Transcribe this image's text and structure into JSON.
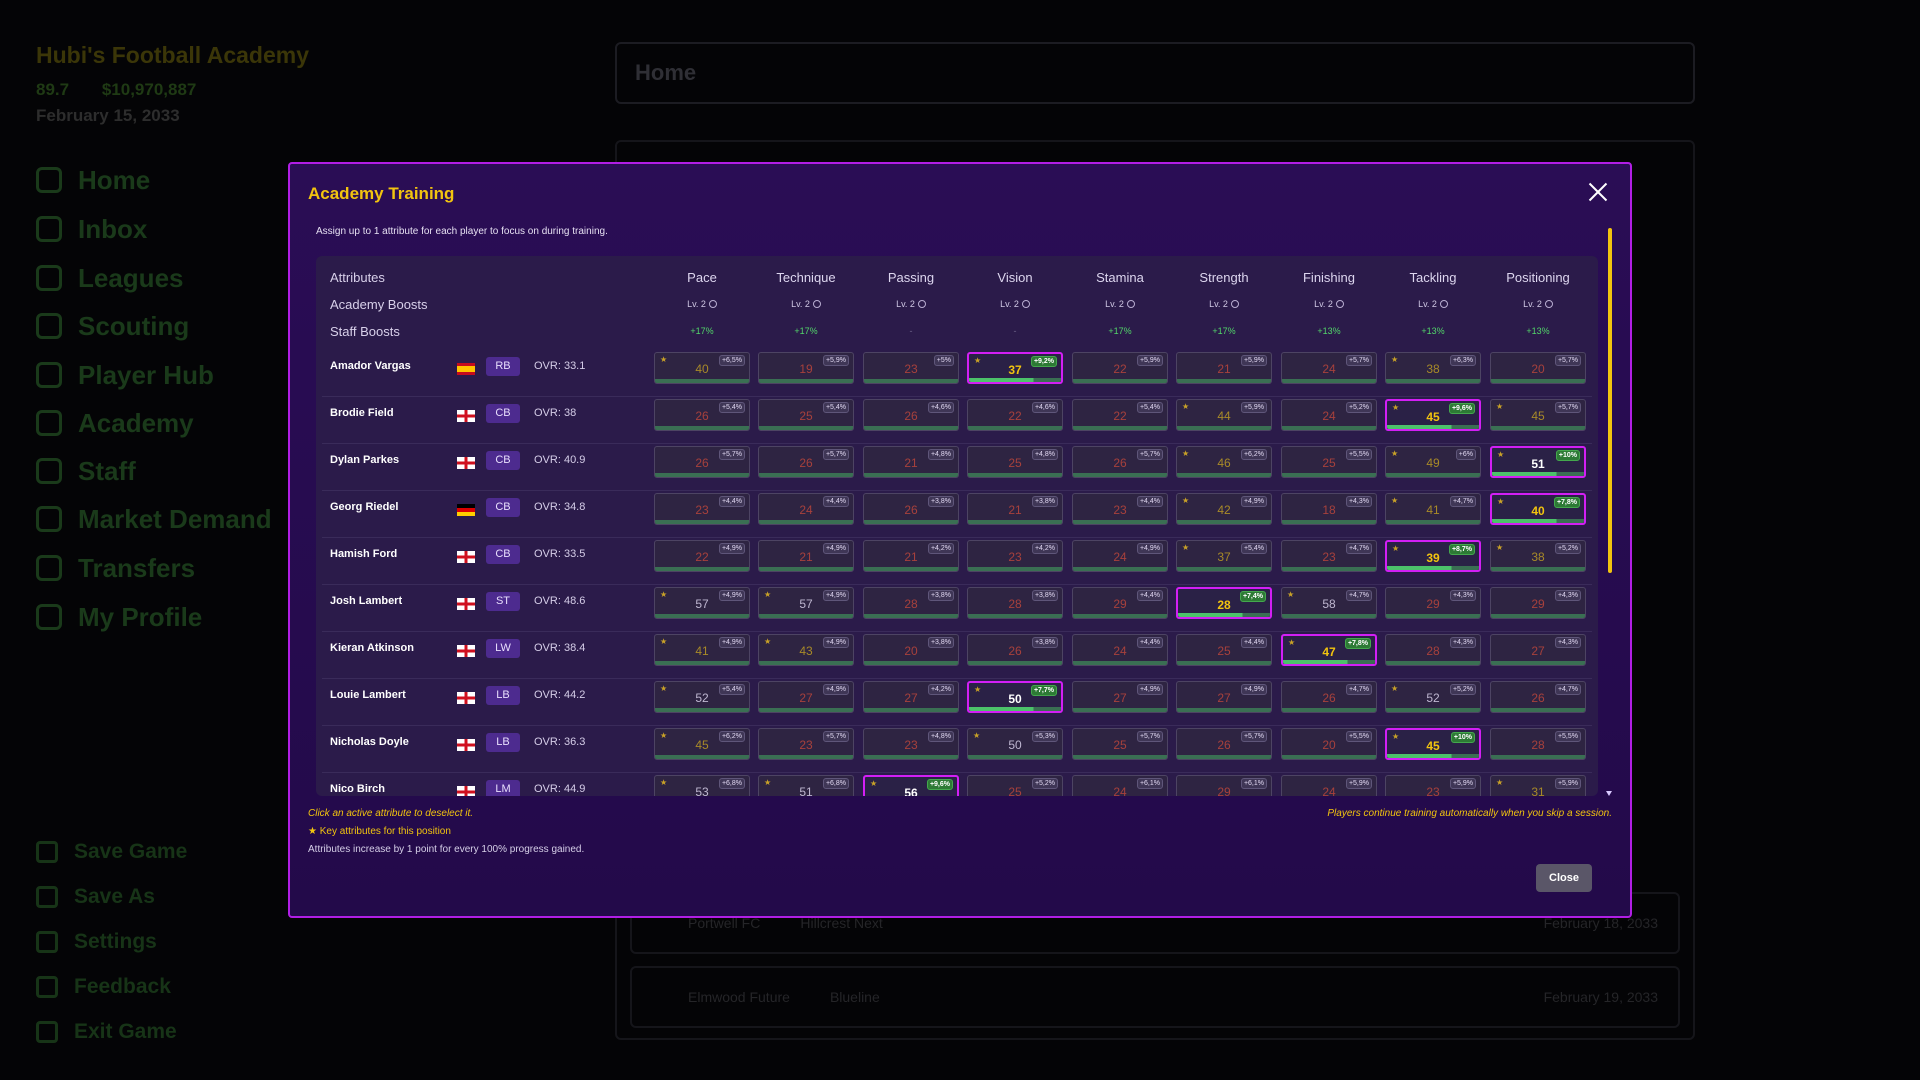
{
  "background": {
    "club_name": "Hubi's Football Academy",
    "rating": "89.7",
    "money": "$10,970,887",
    "date": "February 15, 2033",
    "nav": [
      "Home",
      "Inbox",
      "Leagues",
      "Scouting",
      "Player Hub",
      "Academy",
      "Staff",
      "Market Demand",
      "Transfers",
      "My Profile"
    ],
    "bottom_nav": [
      "Save Game",
      "Save As",
      "Settings",
      "Feedback",
      "Exit Game"
    ],
    "header_title": "Home",
    "matches": [
      {
        "home": "Portwell FC",
        "away": "Hillcrest Next",
        "date": "February 18, 2033"
      },
      {
        "home": "Elmwood Future",
        "away": "Blueline",
        "date": "February 19, 2033"
      }
    ]
  },
  "modal": {
    "title": "Academy Training",
    "subtitle": "Assign up to 1 attribute for each player to focus on during training.",
    "labels": {
      "attributes": "Attributes",
      "academy_boosts": "Academy Boosts",
      "staff_boosts": "Staff Boosts"
    },
    "attributes": [
      {
        "name": "Pace",
        "level": "Lv. 2",
        "staff": "+17%"
      },
      {
        "name": "Technique",
        "level": "Lv. 2",
        "staff": "+17%"
      },
      {
        "name": "Passing",
        "level": "Lv. 2",
        "staff": "-"
      },
      {
        "name": "Vision",
        "level": "Lv. 2",
        "staff": "-"
      },
      {
        "name": "Stamina",
        "level": "Lv. 2",
        "staff": "+17%"
      },
      {
        "name": "Strength",
        "level": "Lv. 2",
        "staff": "+17%"
      },
      {
        "name": "Finishing",
        "level": "Lv. 2",
        "staff": "+13%"
      },
      {
        "name": "Tackling",
        "level": "Lv. 2",
        "staff": "+13%"
      },
      {
        "name": "Positioning",
        "level": "Lv. 2",
        "staff": "+13%"
      }
    ],
    "players": [
      {
        "name": "Amador Vargas",
        "flag": "spain",
        "pos": "RB",
        "ovr": "OVR: 33.1",
        "cells": [
          {
            "v": "40",
            "b": "+6,5%",
            "k": true
          },
          {
            "v": "19",
            "b": "+5,9%"
          },
          {
            "v": "23",
            "b": "+5%"
          },
          {
            "v": "37",
            "b": "+9,2%",
            "k": true,
            "a": true
          },
          {
            "v": "22",
            "b": "+5,9%"
          },
          {
            "v": "21",
            "b": "+5,9%"
          },
          {
            "v": "24",
            "b": "+5,7%"
          },
          {
            "v": "38",
            "b": "+6,3%",
            "k": true
          },
          {
            "v": "20",
            "b": "+5,7%"
          }
        ]
      },
      {
        "name": "Brodie Field",
        "flag": "england",
        "pos": "CB",
        "ovr": "OVR: 38",
        "cells": [
          {
            "v": "26",
            "b": "+5,4%"
          },
          {
            "v": "25",
            "b": "+5,4%"
          },
          {
            "v": "26",
            "b": "+4,6%"
          },
          {
            "v": "22",
            "b": "+4,6%"
          },
          {
            "v": "22",
            "b": "+5,4%"
          },
          {
            "v": "44",
            "b": "+5,9%",
            "k": true
          },
          {
            "v": "24",
            "b": "+5,2%"
          },
          {
            "v": "45",
            "b": "+9,6%",
            "k": true,
            "a": true
          },
          {
            "v": "45",
            "b": "+5,7%",
            "k": true
          }
        ]
      },
      {
        "name": "Dylan Parkes",
        "flag": "england",
        "pos": "CB",
        "ovr": "OVR: 40.9",
        "cells": [
          {
            "v": "26",
            "b": "+5,7%"
          },
          {
            "v": "26",
            "b": "+5,7%"
          },
          {
            "v": "21",
            "b": "+4,8%"
          },
          {
            "v": "25",
            "b": "+4,8%"
          },
          {
            "v": "26",
            "b": "+5,7%"
          },
          {
            "v": "46",
            "b": "+6,2%",
            "k": true
          },
          {
            "v": "25",
            "b": "+5,5%"
          },
          {
            "v": "49",
            "b": "+6%",
            "k": true
          },
          {
            "v": "51",
            "b": "+10%",
            "k": true,
            "a": true,
            "w": true
          }
        ]
      },
      {
        "name": "Georg Riedel",
        "flag": "germany",
        "pos": "CB",
        "ovr": "OVR: 34.8",
        "cells": [
          {
            "v": "23",
            "b": "+4,4%"
          },
          {
            "v": "24",
            "b": "+4,4%"
          },
          {
            "v": "26",
            "b": "+3,8%"
          },
          {
            "v": "21",
            "b": "+3,8%"
          },
          {
            "v": "23",
            "b": "+4,4%"
          },
          {
            "v": "42",
            "b": "+4,9%",
            "k": true
          },
          {
            "v": "18",
            "b": "+4,3%"
          },
          {
            "v": "41",
            "b": "+4,7%",
            "k": true
          },
          {
            "v": "40",
            "b": "+7,8%",
            "k": true,
            "a": true
          }
        ]
      },
      {
        "name": "Hamish Ford",
        "flag": "england",
        "pos": "CB",
        "ovr": "OVR: 33.5",
        "cells": [
          {
            "v": "22",
            "b": "+4,9%"
          },
          {
            "v": "21",
            "b": "+4,9%"
          },
          {
            "v": "21",
            "b": "+4,2%"
          },
          {
            "v": "23",
            "b": "+4,2%"
          },
          {
            "v": "24",
            "b": "+4,9%"
          },
          {
            "v": "37",
            "b": "+5,4%",
            "k": true
          },
          {
            "v": "23",
            "b": "+4,7%"
          },
          {
            "v": "39",
            "b": "+8,7%",
            "k": true,
            "a": true
          },
          {
            "v": "38",
            "b": "+5,2%",
            "k": true
          }
        ]
      },
      {
        "name": "Josh Lambert",
        "flag": "england",
        "pos": "ST",
        "ovr": "OVR: 48.6",
        "cells": [
          {
            "v": "57",
            "b": "+4,9%",
            "k": true,
            "n": true
          },
          {
            "v": "57",
            "b": "+4,9%",
            "k": true,
            "n": true
          },
          {
            "v": "28",
            "b": "+3,8%"
          },
          {
            "v": "28",
            "b": "+3,8%"
          },
          {
            "v": "29",
            "b": "+4,4%"
          },
          {
            "v": "28",
            "b": "+7,4%",
            "a": true,
            "r": true
          },
          {
            "v": "58",
            "b": "+4,7%",
            "k": true,
            "n": true
          },
          {
            "v": "29",
            "b": "+4,3%"
          },
          {
            "v": "29",
            "b": "+4,3%"
          }
        ]
      },
      {
        "name": "Kieran Atkinson",
        "flag": "england",
        "pos": "LW",
        "ovr": "OVR: 38.4",
        "cells": [
          {
            "v": "41",
            "b": "+4,9%",
            "k": true
          },
          {
            "v": "43",
            "b": "+4,9%",
            "k": true
          },
          {
            "v": "20",
            "b": "+3,8%"
          },
          {
            "v": "26",
            "b": "+3,8%"
          },
          {
            "v": "24",
            "b": "+4,4%"
          },
          {
            "v": "25",
            "b": "+4,4%"
          },
          {
            "v": "47",
            "b": "+7,8%",
            "k": true,
            "a": true
          },
          {
            "v": "28",
            "b": "+4,3%"
          },
          {
            "v": "27",
            "b": "+4,3%"
          }
        ]
      },
      {
        "name": "Louie Lambert",
        "flag": "england",
        "pos": "LB",
        "ovr": "OVR: 44.2",
        "cells": [
          {
            "v": "52",
            "b": "+5,4%",
            "k": true,
            "n": true
          },
          {
            "v": "27",
            "b": "+4,9%"
          },
          {
            "v": "27",
            "b": "+4,2%"
          },
          {
            "v": "50",
            "b": "+7,7%",
            "k": true,
            "a": true,
            "w": true
          },
          {
            "v": "27",
            "b": "+4,9%"
          },
          {
            "v": "27",
            "b": "+4,9%"
          },
          {
            "v": "26",
            "b": "+4,7%"
          },
          {
            "v": "52",
            "b": "+5,2%",
            "k": true,
            "n": true
          },
          {
            "v": "26",
            "b": "+4,7%"
          }
        ]
      },
      {
        "name": "Nicholas Doyle",
        "flag": "england",
        "pos": "LB",
        "ovr": "OVR: 36.3",
        "cells": [
          {
            "v": "45",
            "b": "+6,2%",
            "k": true
          },
          {
            "v": "23",
            "b": "+5,7%"
          },
          {
            "v": "23",
            "b": "+4,8%"
          },
          {
            "v": "50",
            "b": "+5,3%",
            "k": true,
            "n": true
          },
          {
            "v": "25",
            "b": "+5,7%"
          },
          {
            "v": "26",
            "b": "+5,7%"
          },
          {
            "v": "20",
            "b": "+5,5%"
          },
          {
            "v": "45",
            "b": "+10%",
            "k": true,
            "a": true
          },
          {
            "v": "28",
            "b": "+5,5%"
          }
        ]
      },
      {
        "name": "Nico Birch",
        "flag": "england",
        "pos": "LM",
        "ovr": "OVR: 44.9",
        "cells": [
          {
            "v": "53",
            "b": "+6,8%",
            "k": true,
            "n": true
          },
          {
            "v": "51",
            "b": "+6,8%",
            "k": true,
            "n": true
          },
          {
            "v": "56",
            "b": "+9,6%",
            "k": true,
            "a": true,
            "w": true
          },
          {
            "v": "25",
            "b": "+5,2%"
          },
          {
            "v": "24",
            "b": "+6,1%"
          },
          {
            "v": "29",
            "b": "+6,1%"
          },
          {
            "v": "24",
            "b": "+5,9%"
          },
          {
            "v": "23",
            "b": "+5,9%"
          },
          {
            "v": "31",
            "b": "+5,9%",
            "k": true
          }
        ]
      }
    ],
    "hints": {
      "deselect": "Click an active attribute to deselect it.",
      "key": "Key attributes for this position",
      "increase": "Attributes increase by 1 point for every 100% progress gained.",
      "skip": "Players continue training automatically when you skip a session."
    },
    "close_label": "Close",
    "colors": {
      "accent": "#f2c40f",
      "active_border": "#d21ff5",
      "modal_border": "#b11ee6",
      "positive": "#52d66a"
    }
  }
}
